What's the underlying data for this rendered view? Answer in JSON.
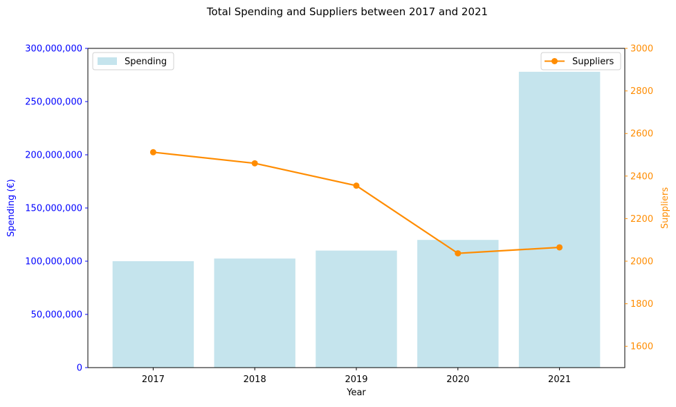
{
  "chart_data": {
    "type": "bar",
    "title": "Total Spending and Suppliers between 2017 and 2021",
    "xlabel": "Year",
    "categories": [
      "2017",
      "2018",
      "2019",
      "2020",
      "2021"
    ],
    "series": [
      {
        "name": "Spending",
        "type": "bar",
        "axis": "left",
        "color": "#add8e6",
        "values": [
          100000000,
          102500000,
          110000000,
          120000000,
          278000000
        ]
      },
      {
        "name": "Suppliers",
        "type": "line",
        "axis": "right",
        "color": "#ff8c00",
        "values": [
          2512,
          2460,
          2355,
          2037,
          2065
        ]
      }
    ],
    "y_left": {
      "label": "Spending (€)",
      "color": "#0000ff",
      "ylim": [
        0,
        300000000
      ],
      "ticks": [
        0,
        50000000,
        100000000,
        150000000,
        200000000,
        250000000,
        300000000
      ],
      "tick_labels": [
        "0",
        "50,000,000",
        "100,000,000",
        "150,000,000",
        "200,000,000",
        "250,000,000",
        "300,000,000"
      ]
    },
    "y_right": {
      "label": "Suppliers",
      "color": "#ff8c00",
      "ylim": [
        1500,
        3000
      ],
      "ticks": [
        1600,
        1800,
        2000,
        2200,
        2400,
        2600,
        2800,
        3000
      ],
      "tick_labels": [
        "1600",
        "1800",
        "2000",
        "2200",
        "2400",
        "2600",
        "2800",
        "3000"
      ]
    },
    "legends": [
      {
        "series": "Spending",
        "placement": "upper-left"
      },
      {
        "series": "Suppliers",
        "placement": "upper-right"
      }
    ],
    "grid": false
  }
}
